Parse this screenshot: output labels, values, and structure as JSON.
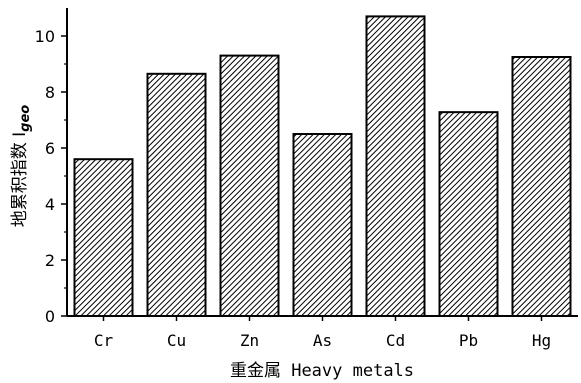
{
  "chart_data": {
    "type": "bar",
    "categories": [
      "Cr",
      "Cu",
      "Zn",
      "As",
      "Cd",
      "Pb",
      "Hg"
    ],
    "values": [
      5.6,
      8.65,
      9.3,
      6.5,
      10.7,
      7.28,
      9.25
    ],
    "xlabel": "重金属 Heavy metals",
    "ylabel": "地累积指数 I",
    "ylabel_subscript": "geo",
    "ylim": [
      0,
      11
    ],
    "yticks": [
      0,
      2,
      4,
      6,
      8,
      10
    ],
    "bar_fill": "hatched",
    "bar_color": "#000000",
    "grid": false,
    "legend": "none"
  }
}
